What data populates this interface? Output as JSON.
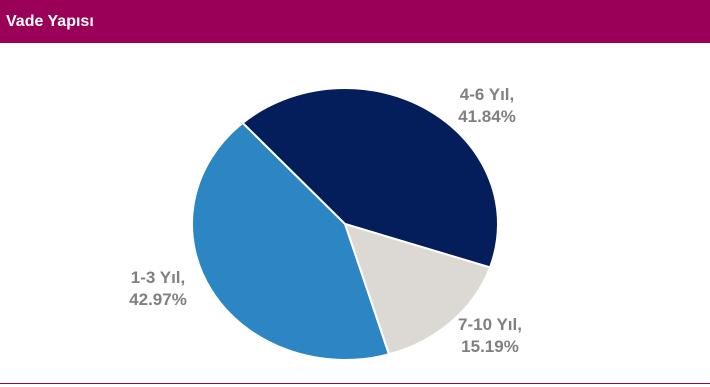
{
  "header": {
    "title": "Vade Yapısı"
  },
  "colors": {
    "header_bg": "#9b0058",
    "header_text": "#ffffff",
    "label_text": "#808080"
  },
  "chart_data": {
    "type": "pie",
    "title": "Vade Yapısı",
    "slices": [
      {
        "label": "4-6 Yıl",
        "value": 41.84,
        "display": "41.84%",
        "color": "#041e5c"
      },
      {
        "label": "7-10 Yıl",
        "value": 15.19,
        "display": "15.19%",
        "color": "#dcd8d3"
      },
      {
        "label": "1-3 Yıl",
        "value": 42.97,
        "display": "42.97%",
        "color": "#2d86c4"
      }
    ]
  }
}
